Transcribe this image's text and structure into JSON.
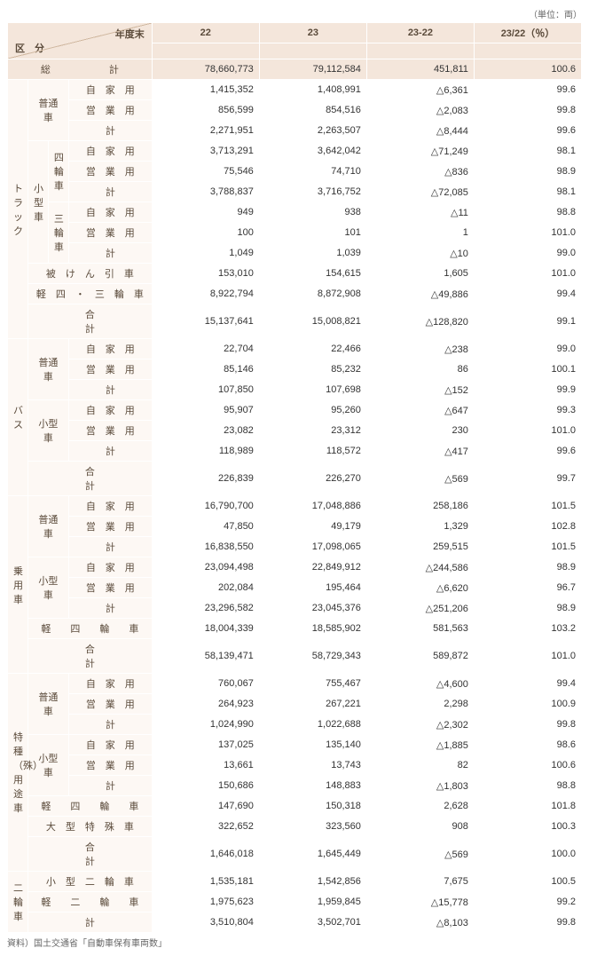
{
  "header": {
    "unit": "（単位：両）",
    "diag_top": "年度末",
    "diag_bot": "区　分",
    "cols": [
      "22",
      "23",
      "23-22",
      "23/22（％）"
    ]
  },
  "labels": {
    "family_use": "自　家　用",
    "business_use": "営　業　用",
    "subtotal": "計",
    "regular": "普通車",
    "small": "小型車",
    "four_wheel": "四輪車",
    "three_wheel": "三輪車",
    "trailer": "被　け　ん　引　車",
    "kei43": "軽　四　・　三　輪　車",
    "total_row": "合　　　　　　　　　　計",
    "grand": "総　　　　　　計",
    "truck": "トラック",
    "bus": "バス",
    "car": "乗用車",
    "special": "特種（殊）用途車",
    "bike": "二輪車",
    "kei4": "軽　　四　　輪　　車",
    "large_special": "大　型　特　殊　車",
    "small_bike": "小　型　二　輪　車",
    "kei_bike": "軽　　二　　輪　　車",
    "bike_total": "計"
  },
  "rows": [
    {
      "k": "grand",
      "v": [
        "78,660,773",
        "79,112,584",
        "451,811",
        "100.6"
      ],
      "cls": "grand"
    },
    {
      "k": "truck",
      "span": 12,
      "sub": [
        {
          "g": "regular",
          "span": 3,
          "r": [
            [
              "family_use",
              "1,415,352",
              "1,408,991",
              "△6,361",
              "99.6"
            ],
            [
              "business_use",
              "856,599",
              "854,516",
              "△2,083",
              "99.8"
            ],
            [
              "subtotal",
              "2,271,951",
              "2,263,507",
              "△8,444",
              "99.6"
            ]
          ]
        },
        {
          "g": "small",
          "span": 6,
          "nest": [
            {
              "g": "four_wheel",
              "span": 3,
              "r": [
                [
                  "family_use",
                  "3,713,291",
                  "3,642,042",
                  "△71,249",
                  "98.1"
                ],
                [
                  "business_use",
                  "75,546",
                  "74,710",
                  "△836",
                  "98.9"
                ],
                [
                  "subtotal",
                  "3,788,837",
                  "3,716,752",
                  "△72,085",
                  "98.1"
                ]
              ]
            },
            {
              "g": "three_wheel",
              "span": 3,
              "r": [
                [
                  "family_use",
                  "949",
                  "938",
                  "△11",
                  "98.8"
                ],
                [
                  "business_use",
                  "100",
                  "101",
                  "1",
                  "101.0"
                ],
                [
                  "subtotal",
                  "1,049",
                  "1,039",
                  "△10",
                  "99.0"
                ]
              ]
            }
          ]
        },
        {
          "flat": [
            [
              "trailer",
              "153,010",
              "154,615",
              "1,605",
              "101.0"
            ],
            [
              "kei43",
              "8,922,794",
              "8,872,908",
              "△49,886",
              "99.4"
            ],
            [
              "total_row",
              "15,137,641",
              "15,008,821",
              "△128,820",
              "99.1"
            ]
          ]
        }
      ]
    },
    {
      "k": "bus",
      "span": 7,
      "sub": [
        {
          "g": "regular",
          "span": 3,
          "r": [
            [
              "family_use",
              "22,704",
              "22,466",
              "△238",
              "99.0"
            ],
            [
              "business_use",
              "85,146",
              "85,232",
              "86",
              "100.1"
            ],
            [
              "subtotal",
              "107,850",
              "107,698",
              "△152",
              "99.9"
            ]
          ]
        },
        {
          "g": "small",
          "span": 3,
          "r": [
            [
              "family_use",
              "95,907",
              "95,260",
              "△647",
              "99.3"
            ],
            [
              "business_use",
              "23,082",
              "23,312",
              "230",
              "101.0"
            ],
            [
              "subtotal",
              "118,989",
              "118,572",
              "△417",
              "99.6"
            ]
          ]
        },
        {
          "flat": [
            [
              "total_row",
              "226,839",
              "226,270",
              "△569",
              "99.7"
            ]
          ]
        }
      ]
    },
    {
      "k": "car",
      "span": 8,
      "sub": [
        {
          "g": "regular",
          "span": 3,
          "r": [
            [
              "family_use",
              "16,790,700",
              "17,048,886",
              "258,186",
              "101.5"
            ],
            [
              "business_use",
              "47,850",
              "49,179",
              "1,329",
              "102.8"
            ],
            [
              "subtotal",
              "16,838,550",
              "17,098,065",
              "259,515",
              "101.5"
            ]
          ]
        },
        {
          "g": "small",
          "span": 3,
          "r": [
            [
              "family_use",
              "23,094,498",
              "22,849,912",
              "△244,586",
              "98.9"
            ],
            [
              "business_use",
              "202,084",
              "195,464",
              "△6,620",
              "96.7"
            ],
            [
              "subtotal",
              "23,296,582",
              "23,045,376",
              "△251,206",
              "98.9"
            ]
          ]
        },
        {
          "flat": [
            [
              "kei4",
              "18,004,339",
              "18,585,902",
              "581,563",
              "103.2"
            ],
            [
              "total_row",
              "58,139,471",
              "58,729,343",
              "589,872",
              "101.0"
            ]
          ]
        }
      ]
    },
    {
      "k": "special",
      "span": 9,
      "sub": [
        {
          "g": "regular",
          "span": 3,
          "r": [
            [
              "family_use",
              "760,067",
              "755,467",
              "△4,600",
              "99.4"
            ],
            [
              "business_use",
              "264,923",
              "267,221",
              "2,298",
              "100.9"
            ],
            [
              "subtotal",
              "1,024,990",
              "1,022,688",
              "△2,302",
              "99.8"
            ]
          ]
        },
        {
          "g": "small",
          "span": 3,
          "r": [
            [
              "family_use",
              "137,025",
              "135,140",
              "△1,885",
              "98.6"
            ],
            [
              "business_use",
              "13,661",
              "13,743",
              "82",
              "100.6"
            ],
            [
              "subtotal",
              "150,686",
              "148,883",
              "△1,803",
              "98.8"
            ]
          ]
        },
        {
          "flat": [
            [
              "kei4",
              "147,690",
              "150,318",
              "2,628",
              "101.8"
            ],
            [
              "large_special",
              "322,652",
              "323,560",
              "908",
              "100.3"
            ],
            [
              "total_row",
              "1,646,018",
              "1,645,449",
              "△569",
              "100.0"
            ]
          ]
        }
      ]
    },
    {
      "k": "bike",
      "span": 3,
      "sub": [
        {
          "flat": [
            [
              "small_bike",
              "1,535,181",
              "1,542,856",
              "7,675",
              "100.5"
            ],
            [
              "kei_bike",
              "1,975,623",
              "1,959,845",
              "△15,778",
              "99.2"
            ],
            [
              "bike_total",
              "3,510,804",
              "3,502,701",
              "△8,103",
              "99.8"
            ]
          ]
        }
      ]
    }
  ],
  "source": "資料）国土交通省「自動車保有車両数」",
  "styles": {
    "header_bg": "#f4e6db",
    "cat_bg": "#fdf8f4",
    "border": "#ffffff",
    "text": "#333333",
    "label": "#5a4a3a"
  }
}
